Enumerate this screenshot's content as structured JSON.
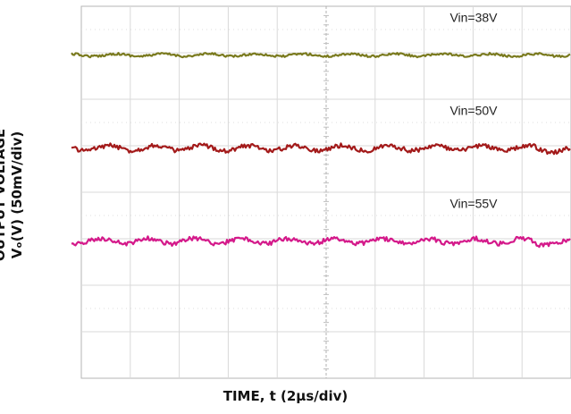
{
  "chart_data": {
    "type": "line",
    "xlabel": "TIME, t (2µs/div)",
    "ylabel_line1": "OUTPUT VOLTAGE",
    "ylabel_line2": "Vₒ(V) (50mV/div)",
    "x_divisions": 10,
    "y_divisions": 8,
    "grid": true,
    "series": [
      {
        "name": "Vin=38V",
        "color": "#7a7a1e",
        "level_div": 6.95,
        "ripple_div": 0.03
      },
      {
        "name": "Vin=50V",
        "color": "#a31a1a",
        "level_div": 4.95,
        "ripple_div": 0.06
      },
      {
        "name": "Vin=55V",
        "color": "#d4198a",
        "level_div": 2.95,
        "ripple_div": 0.06
      }
    ]
  }
}
